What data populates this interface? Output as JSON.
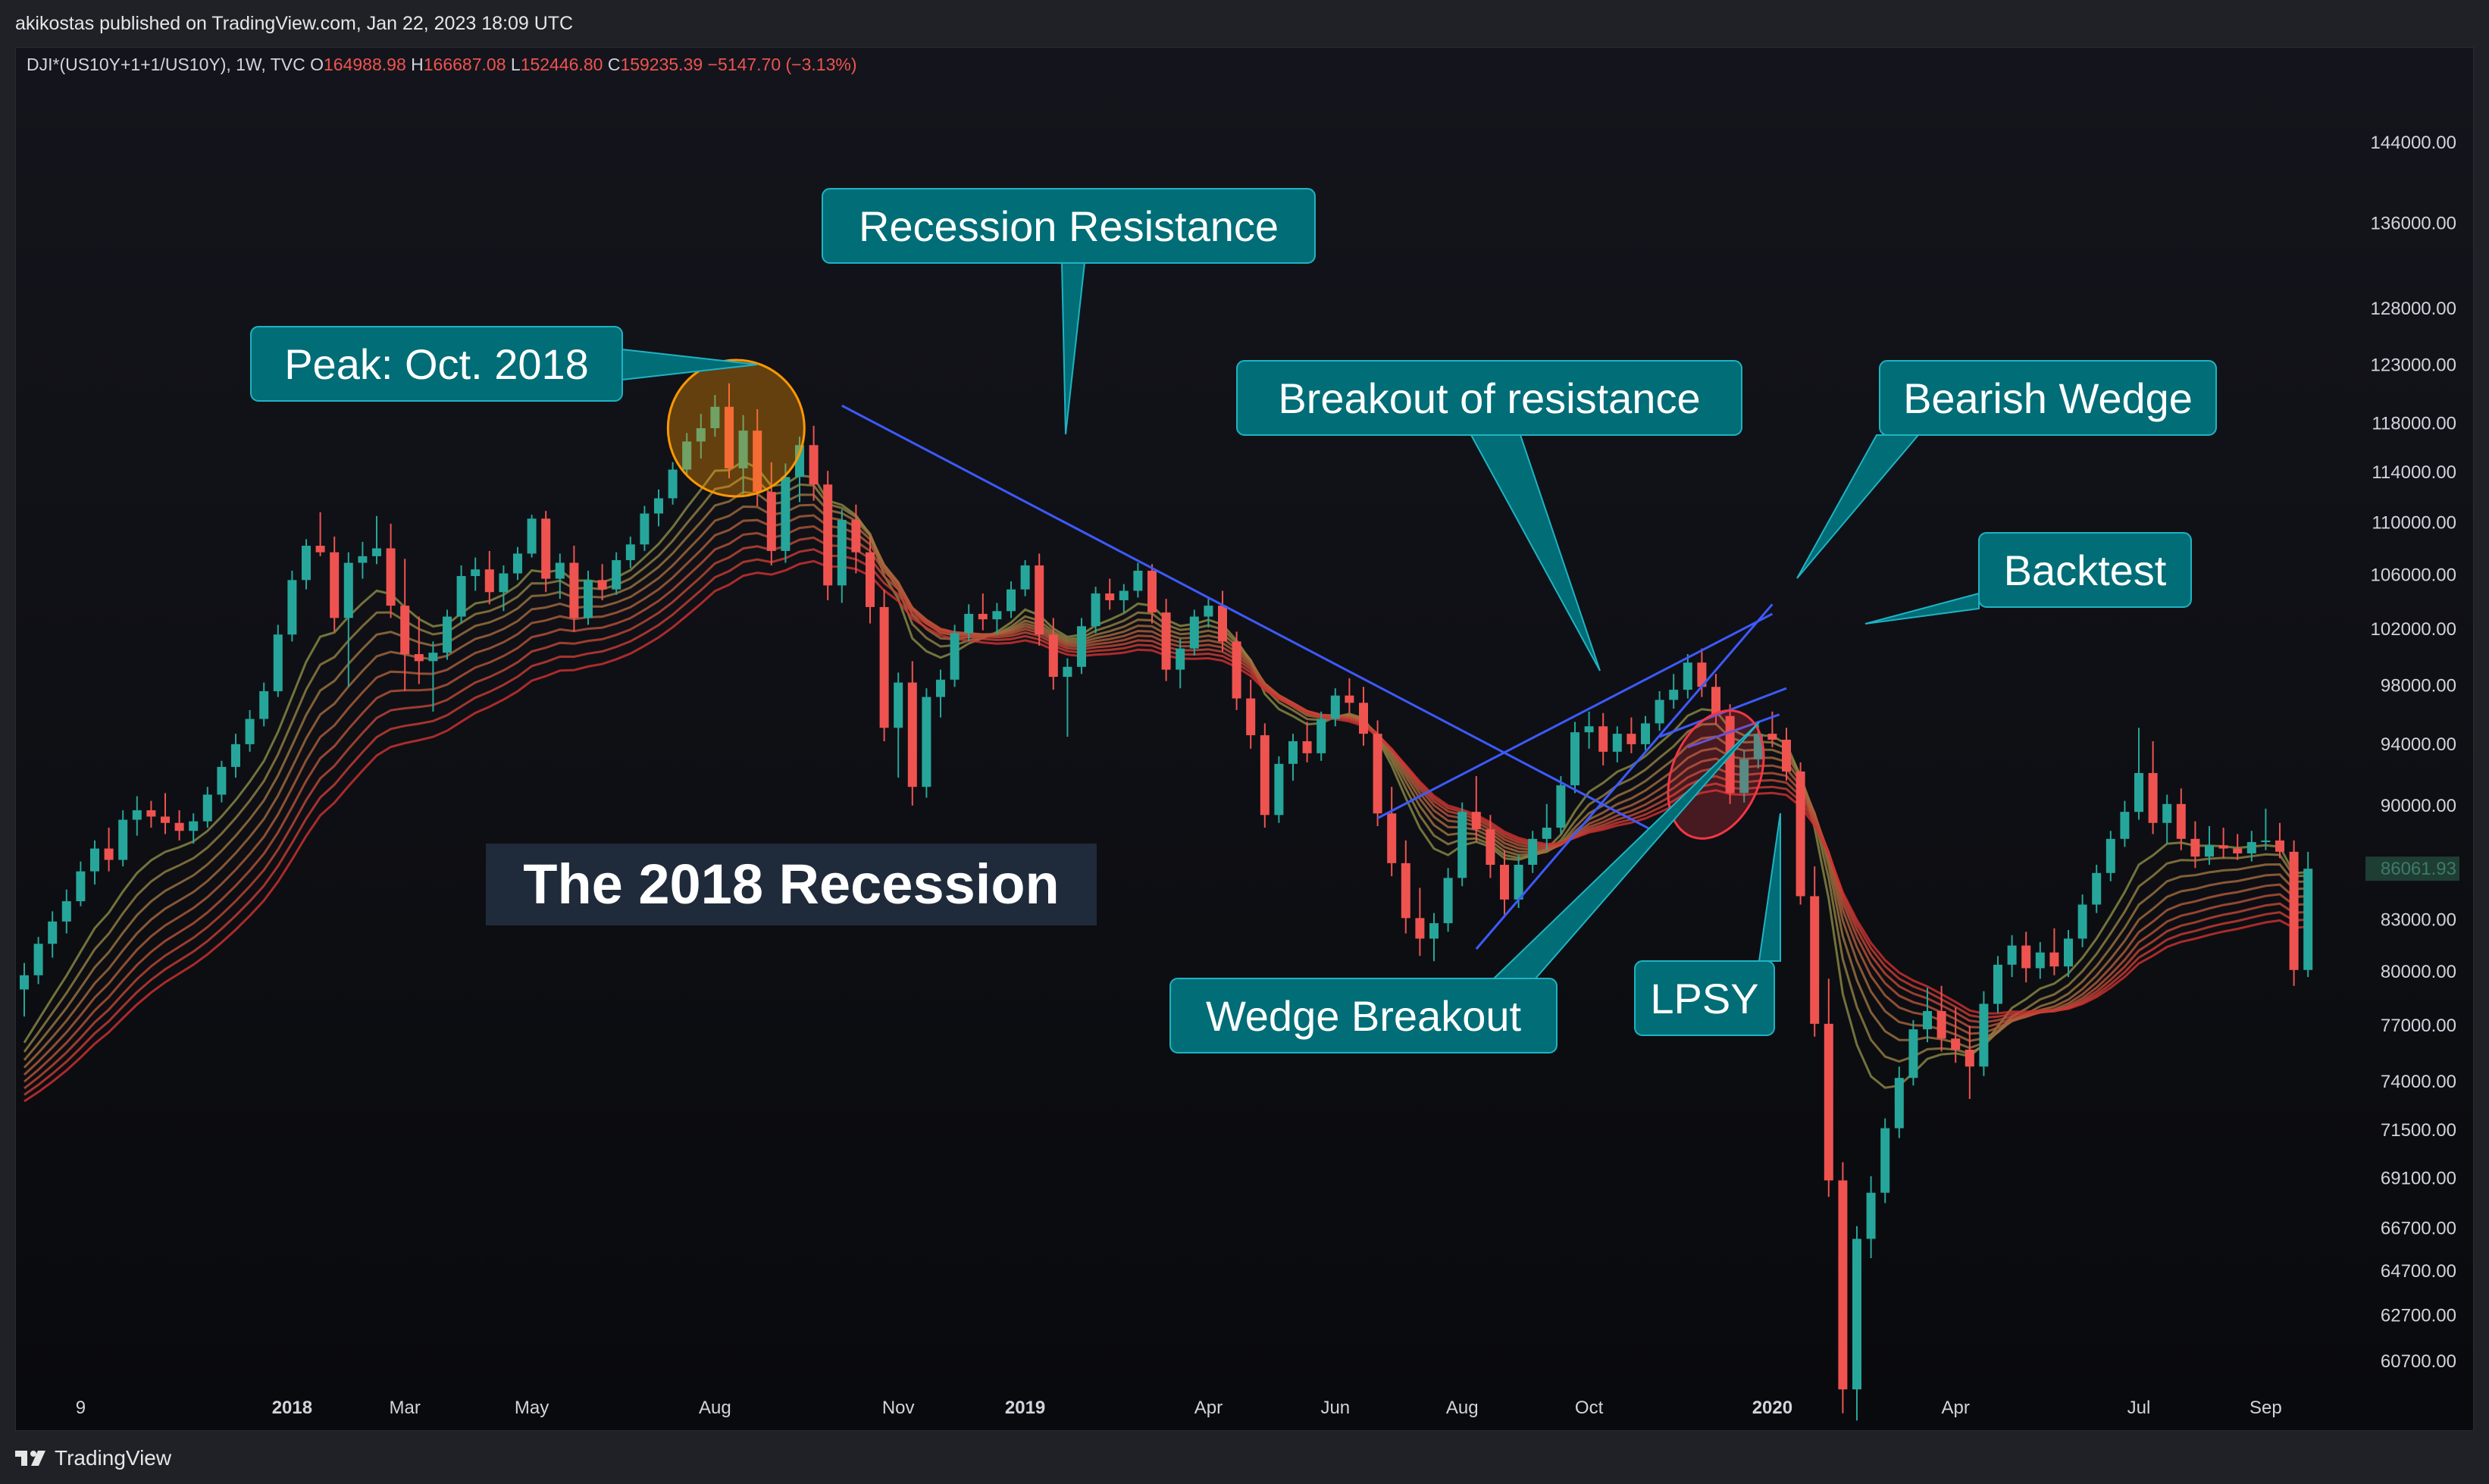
{
  "header": {
    "published": "akikostas published on TradingView.com, Jan 22, 2023 18:09 UTC"
  },
  "footer": {
    "brand": "TradingView",
    "brand_icon": "tradingview-logo-icon"
  },
  "legend": {
    "symbol": "DJI*(US10Y+1+1/US10Y), 1W, TVC",
    "o_label": "O",
    "o_value": "164988.98",
    "h_label": "H",
    "h_value": "166687.08",
    "l_label": "L",
    "l_value": "152446.80",
    "c_label": "C",
    "c_value": "159235.39",
    "change": "−5147.70 (−3.13%)"
  },
  "colors": {
    "up": "#26a69a",
    "down": "#ef5350",
    "trend": "#3d5afe",
    "callout": "#006d77",
    "callout_border": "#1fb3c2",
    "peak_circle": "#ff9800",
    "lpsy_ellipse": "#f23645"
  },
  "chart_data": {
    "type": "candlestick",
    "y_scale": "log",
    "ylim": [
      58000,
      146000
    ],
    "y_ticks": [
      144000,
      136000,
      128000,
      123000,
      118000,
      114000,
      110000,
      106000,
      102000,
      98000,
      94000,
      90000,
      86000,
      83000,
      80000,
      77000,
      74000,
      71500,
      69100,
      66700,
      64700,
      62700,
      60700
    ],
    "y_tick_labels": [
      "144000.00",
      "136000.00",
      "128000.00",
      "123000.00",
      "118000.00",
      "114000.00",
      "110000.00",
      "106000.00",
      "102000.00",
      "98000.00",
      "94000.00",
      "90000.00",
      "86000.00",
      "83000.00",
      "80000.00",
      "77000.00",
      "74000.00",
      "71500.00",
      "69100.00",
      "66700.00",
      "64700.00",
      "62700.00",
      "60700.00"
    ],
    "x_labels": [
      {
        "label": "9",
        "week": 4,
        "bold": false
      },
      {
        "label": "2018",
        "week": 19,
        "bold": true
      },
      {
        "label": "Mar",
        "week": 27,
        "bold": false
      },
      {
        "label": "May",
        "week": 36,
        "bold": false
      },
      {
        "label": "Aug",
        "week": 49,
        "bold": false
      },
      {
        "label": "Nov",
        "week": 62,
        "bold": false
      },
      {
        "label": "2019",
        "week": 71,
        "bold": true
      },
      {
        "label": "Apr",
        "week": 84,
        "bold": false
      },
      {
        "label": "Jun",
        "week": 93,
        "bold": false
      },
      {
        "label": "Aug",
        "week": 102,
        "bold": false
      },
      {
        "label": "Oct",
        "week": 111,
        "bold": false
      },
      {
        "label": "2020",
        "week": 124,
        "bold": true
      },
      {
        "label": "Apr",
        "week": 137,
        "bold": false
      },
      {
        "label": "Jul",
        "week": 150,
        "bold": false
      },
      {
        "label": "Sep",
        "week": 159,
        "bold": false
      }
    ],
    "last_price_label": "86061.93",
    "last_price": 86061.93,
    "candles": [
      [
        79000,
        80500,
        77500,
        79800
      ],
      [
        79800,
        82000,
        79300,
        81600
      ],
      [
        81600,
        83500,
        80800,
        82900
      ],
      [
        82900,
        84800,
        82200,
        84100
      ],
      [
        84100,
        86500,
        83800,
        85900
      ],
      [
        85900,
        87800,
        85100,
        87300
      ],
      [
        87300,
        88600,
        85900,
        86600
      ],
      [
        86600,
        89700,
        86200,
        89100
      ],
      [
        89100,
        90600,
        88100,
        89700
      ],
      [
        89700,
        90300,
        88600,
        89300
      ],
      [
        89300,
        90800,
        88200,
        88900
      ],
      [
        88900,
        89700,
        87800,
        88400
      ],
      [
        88400,
        89500,
        87600,
        89000
      ],
      [
        89000,
        91200,
        88600,
        90700
      ],
      [
        90700,
        92900,
        90200,
        92500
      ],
      [
        92500,
        94700,
        91800,
        94000
      ],
      [
        94000,
        96300,
        93500,
        95700
      ],
      [
        95700,
        98200,
        95200,
        97600
      ],
      [
        97600,
        102300,
        97200,
        101600
      ],
      [
        101600,
        106300,
        101100,
        105600
      ],
      [
        105600,
        108700,
        104900,
        108200
      ],
      [
        108200,
        110800,
        107400,
        107700
      ],
      [
        107700,
        108900,
        101800,
        102800
      ],
      [
        102800,
        107700,
        97900,
        106900
      ],
      [
        106900,
        108500,
        105700,
        107400
      ],
      [
        107400,
        110500,
        106800,
        108000
      ],
      [
        108000,
        109900,
        102800,
        103700
      ],
      [
        103700,
        107200,
        97600,
        100200
      ],
      [
        100200,
        102900,
        98100,
        99700
      ],
      [
        99700,
        101100,
        96200,
        100300
      ],
      [
        100300,
        103400,
        99800,
        102900
      ],
      [
        102900,
        106700,
        102400,
        105900
      ],
      [
        105900,
        107300,
        104800,
        106400
      ],
      [
        106400,
        107800,
        103800,
        104700
      ],
      [
        104700,
        106700,
        103300,
        106100
      ],
      [
        106100,
        108100,
        105600,
        107600
      ],
      [
        107600,
        110600,
        107300,
        110300
      ],
      [
        110300,
        110900,
        104700,
        105700
      ],
      [
        105700,
        107600,
        104200,
        106900
      ],
      [
        106900,
        108200,
        101800,
        102800
      ],
      [
        102800,
        106300,
        102300,
        105600
      ],
      [
        105600,
        106800,
        104100,
        104900
      ],
      [
        104900,
        107700,
        104500,
        107100
      ],
      [
        107100,
        108900,
        106500,
        108300
      ],
      [
        108300,
        111300,
        107800,
        110700
      ],
      [
        110700,
        112600,
        109700,
        111900
      ],
      [
        111900,
        114800,
        111400,
        114200
      ],
      [
        114200,
        117200,
        113700,
        116500
      ],
      [
        116500,
        118800,
        115100,
        117600
      ],
      [
        117600,
        120400,
        116900,
        119400
      ],
      [
        119400,
        121400,
        113500,
        114300
      ],
      [
        114300,
        118700,
        112200,
        117400
      ],
      [
        117400,
        119200,
        111300,
        112400
      ],
      [
        112400,
        114800,
        106700,
        107800
      ],
      [
        107800,
        114700,
        106900,
        113600
      ],
      [
        113600,
        116900,
        111600,
        116200
      ],
      [
        116200,
        117800,
        111700,
        113000
      ],
      [
        113000,
        114100,
        104100,
        105200
      ],
      [
        105200,
        111000,
        103900,
        110200
      ],
      [
        110200,
        111400,
        106100,
        107700
      ],
      [
        107700,
        108900,
        102400,
        103600
      ],
      [
        103600,
        104900,
        94200,
        95100
      ],
      [
        95100,
        98900,
        91800,
        98200
      ],
      [
        98200,
        99700,
        90000,
        91200
      ],
      [
        91200,
        97800,
        90500,
        97200
      ],
      [
        97200,
        99100,
        95800,
        98400
      ],
      [
        98400,
        102300,
        97900,
        101700
      ],
      [
        101700,
        103800,
        101100,
        103100
      ],
      [
        103100,
        104600,
        101900,
        102700
      ],
      [
        102700,
        103900,
        101600,
        103300
      ],
      [
        103300,
        105500,
        102800,
        104900
      ],
      [
        104900,
        107100,
        104400,
        106700
      ],
      [
        106700,
        107600,
        100800,
        101600
      ],
      [
        101600,
        102800,
        97700,
        98600
      ],
      [
        98600,
        99900,
        94500,
        99300
      ],
      [
        99300,
        102800,
        98800,
        102200
      ],
      [
        102200,
        105100,
        101700,
        104600
      ],
      [
        104600,
        105700,
        103400,
        104100
      ],
      [
        104100,
        105300,
        103200,
        104800
      ],
      [
        104800,
        106900,
        104300,
        106300
      ],
      [
        106300,
        106800,
        102400,
        103200
      ],
      [
        103200,
        104200,
        98300,
        99100
      ],
      [
        99100,
        101300,
        97800,
        100600
      ],
      [
        100600,
        103400,
        100100,
        102900
      ],
      [
        102900,
        104300,
        102100,
        103700
      ],
      [
        103700,
        104800,
        100400,
        101100
      ],
      [
        101100,
        101800,
        96300,
        97100
      ],
      [
        97100,
        98400,
        93700,
        94600
      ],
      [
        94600,
        95400,
        88600,
        89400
      ],
      [
        89400,
        93200,
        88900,
        92700
      ],
      [
        92700,
        94700,
        91600,
        94200
      ],
      [
        94200,
        95500,
        92800,
        93400
      ],
      [
        93400,
        96200,
        92900,
        95700
      ],
      [
        95700,
        97800,
        95200,
        97300
      ],
      [
        97300,
        98500,
        96100,
        96800
      ],
      [
        96800,
        97900,
        93900,
        94700
      ],
      [
        94700,
        95600,
        88700,
        89500
      ],
      [
        89500,
        91200,
        85600,
        86400
      ],
      [
        86400,
        87800,
        82200,
        83100
      ],
      [
        83100,
        84900,
        80900,
        81900
      ],
      [
        81900,
        83400,
        80600,
        82800
      ],
      [
        82800,
        86100,
        82300,
        85500
      ],
      [
        85500,
        90200,
        85000,
        89600
      ],
      [
        89600,
        91900,
        87700,
        88500
      ],
      [
        88500,
        89400,
        85500,
        86300
      ],
      [
        86300,
        87200,
        83300,
        84200
      ],
      [
        84200,
        86900,
        83700,
        86300
      ],
      [
        86300,
        88400,
        85800,
        87900
      ],
      [
        87900,
        90100,
        87200,
        88600
      ],
      [
        88600,
        91900,
        88200,
        91300
      ],
      [
        91300,
        95500,
        90800,
        94800
      ],
      [
        94800,
        96200,
        93700,
        95200
      ],
      [
        95200,
        96100,
        92600,
        93500
      ],
      [
        93500,
        95200,
        92800,
        94700
      ],
      [
        94700,
        95800,
        93400,
        94000
      ],
      [
        94000,
        95900,
        93600,
        95400
      ],
      [
        95400,
        97600,
        94900,
        97000
      ],
      [
        97000,
        98800,
        96400,
        97700
      ],
      [
        97700,
        100200,
        97100,
        99600
      ],
      [
        99600,
        100600,
        97200,
        97900
      ],
      [
        97900,
        98800,
        95300,
        95900
      ],
      [
        95900,
        96700,
        90100,
        90800
      ],
      [
        90800,
        93600,
        90200,
        93000
      ],
      [
        93000,
        95300,
        92400,
        94700
      ],
      [
        94700,
        96200,
        93800,
        94300
      ],
      [
        94300,
        95100,
        91600,
        92200
      ],
      [
        92200,
        92800,
        83900,
        84400
      ],
      [
        84400,
        86200,
        76400,
        77100
      ],
      [
        77100,
        79600,
        68200,
        69000
      ],
      [
        69000,
        69900,
        58500,
        59500
      ],
      [
        59500,
        66800,
        58200,
        66200
      ],
      [
        66200,
        69200,
        65300,
        68400
      ],
      [
        68400,
        72100,
        67900,
        71600
      ],
      [
        71600,
        74800,
        71100,
        74200
      ],
      [
        74200,
        77300,
        73800,
        76800
      ],
      [
        76800,
        79100,
        76100,
        77800
      ],
      [
        77800,
        79200,
        75600,
        76300
      ],
      [
        76300,
        78000,
        75000,
        75700
      ],
      [
        75700,
        77000,
        73100,
        74800
      ],
      [
        74800,
        78900,
        74300,
        78200
      ],
      [
        78200,
        80900,
        77700,
        80400
      ],
      [
        80400,
        82100,
        79700,
        81500
      ],
      [
        81500,
        82300,
        79400,
        80200
      ],
      [
        80200,
        81700,
        79600,
        81100
      ],
      [
        81100,
        82500,
        79800,
        80300
      ],
      [
        80300,
        82400,
        79700,
        81900
      ],
      [
        81900,
        84500,
        81400,
        83900
      ],
      [
        83900,
        86300,
        83400,
        85800
      ],
      [
        85800,
        88400,
        85300,
        87900
      ],
      [
        87900,
        90300,
        87400,
        89600
      ],
      [
        89600,
        95100,
        89100,
        92100
      ],
      [
        92100,
        94200,
        88200,
        88900
      ],
      [
        88900,
        90700,
        87600,
        90100
      ],
      [
        90100,
        91100,
        87200,
        87900
      ],
      [
        87900,
        89000,
        86100,
        86800
      ],
      [
        86800,
        88700,
        86300,
        87500
      ],
      [
        87500,
        88600,
        86700,
        87300
      ],
      [
        87300,
        88200,
        86600,
        87000
      ],
      [
        87000,
        88400,
        86500,
        87700
      ],
      [
        87700,
        89800,
        87200,
        87800
      ],
      [
        87800,
        88900,
        86700,
        87100
      ],
      [
        87100,
        87800,
        79200,
        80100
      ],
      [
        80100,
        87100,
        79700,
        86062
      ]
    ]
  },
  "annotations": {
    "peak": "Peak: Oct. 2018",
    "recession_resistance": "Recession Resistance",
    "breakout_resistance": "Breakout of resistance",
    "bearish_wedge": "Bearish Wedge",
    "backtest": "Backtest",
    "wedge_breakout": "Wedge Breakout",
    "lpsy": "LPSY",
    "title": "The 2018 Recession"
  }
}
